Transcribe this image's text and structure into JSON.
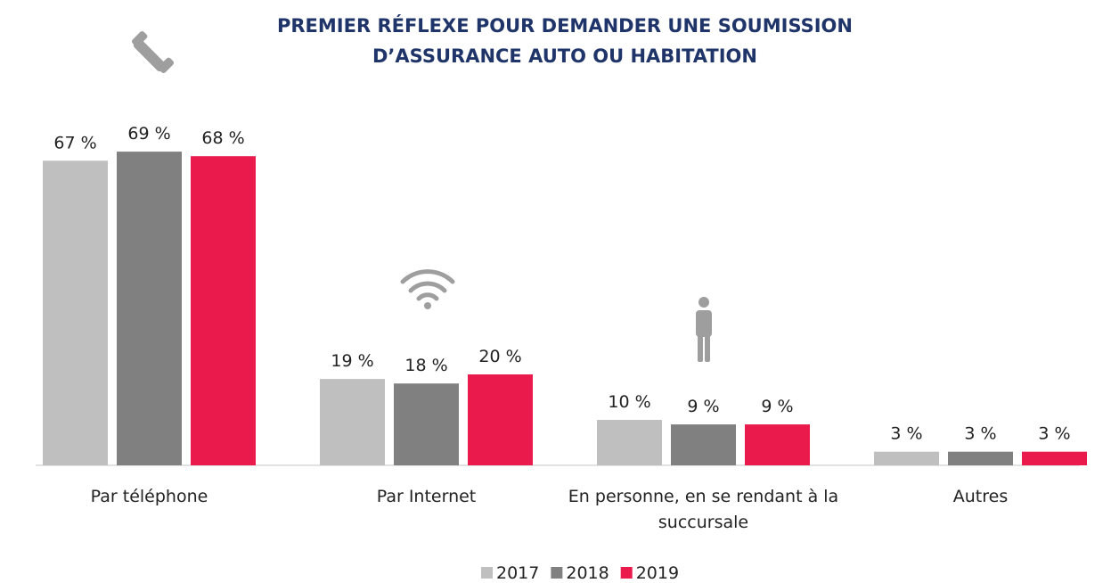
{
  "chart_data": {
    "type": "bar",
    "title": [
      "PREMIER RÉFLEXE POUR DEMANDER UNE SOUMISSION",
      "D’ASSURANCE AUTO OU HABITATION"
    ],
    "categories": [
      "Par téléphone",
      "Par Internet",
      "En personne, en se rendant à la succursale",
      "Autres"
    ],
    "series": [
      {
        "name": "2017",
        "color": "#bfbfbf",
        "values": [
          67,
          19,
          10,
          3
        ],
        "value_labels": [
          "67 %",
          "19 %",
          "10 %",
          "3 %"
        ]
      },
      {
        "name": "2018",
        "color": "#808080",
        "values": [
          69,
          18,
          9,
          3
        ],
        "value_labels": [
          "69 %",
          "18 %",
          "9 %",
          "3 %"
        ]
      },
      {
        "name": "2019",
        "color": "#ea1a4c",
        "values": [
          68,
          20,
          9,
          3
        ],
        "value_labels": [
          "68 %",
          "20 %",
          "9 %",
          "3 %"
        ]
      }
    ],
    "ylim": [
      0,
      100
    ],
    "legend": "bottom"
  }
}
